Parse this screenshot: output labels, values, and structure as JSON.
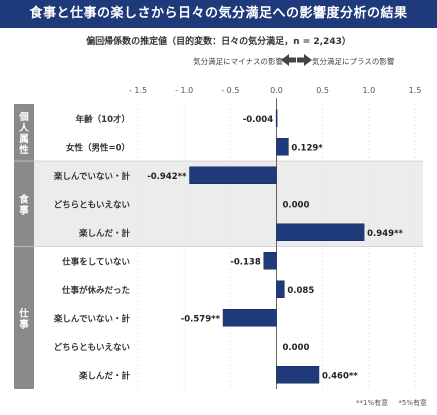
{
  "colors": {
    "bar_fill": "#1f3a7a",
    "bar_stroke": "#16295a",
    "group_label_bg": "#8a8a8a",
    "band_shaded": "#ececec",
    "band_plain": "#ffffff",
    "zero_line": "#666666",
    "grid": "#dddddd",
    "title_bg": "#1f3a7a"
  },
  "header": {
    "title": "食事と仕事の楽しさから日々の気分満足への影響度分析の結果",
    "subtitle": "偏回帰係数の推定値（目的変数：日々の気分満足，n = 2,243）",
    "negative_effect": "気分満足にマイナスの影響",
    "positive_effect": "気分満足にプラスの影響",
    "arrow_left_icon": "arrow-left-icon",
    "arrow_right_icon": "arrow-right-icon"
  },
  "footer": {
    "note_1pct": "**1%有意",
    "note_5pct": "*5%有意"
  },
  "chart_data": {
    "type": "bar",
    "orientation": "horizontal",
    "xlim": [
      -1.5,
      1.5
    ],
    "xticks": [
      -1.5,
      -1.0,
      -0.5,
      0.0,
      0.5,
      1.0,
      1.5
    ],
    "xtick_labels": [
      "- 1.5",
      "- 1.0",
      "- 0.5",
      "0.0",
      "0.5",
      "1.0",
      "1.5"
    ],
    "groups": [
      {
        "label": "個人属性",
        "shaded": false,
        "rows": [
          {
            "category": "年齢（10才）",
            "value": -0.004,
            "label": "-0.004"
          },
          {
            "category": "女性（男性=0）",
            "value": 0.129,
            "label": "0.129*"
          }
        ]
      },
      {
        "label": "食事",
        "shaded": true,
        "rows": [
          {
            "category": "楽しんでいない・計",
            "value": -0.942,
            "label": "-0.942**"
          },
          {
            "category": "どちらともいえない",
            "value": 0.0,
            "label": "0.000"
          },
          {
            "category": "楽しんだ・計",
            "value": 0.949,
            "label": "0.949**"
          }
        ]
      },
      {
        "label": "仕事",
        "shaded": false,
        "rows": [
          {
            "category": "仕事をしていない",
            "value": -0.138,
            "label": "-0.138"
          },
          {
            "category": "仕事が休みだった",
            "value": 0.085,
            "label": "0.085"
          },
          {
            "category": "楽しんでいない・計",
            "value": -0.579,
            "label": "-0.579**"
          },
          {
            "category": "どちらともいえない",
            "value": 0.0,
            "label": "0.000"
          },
          {
            "category": "楽しんだ・計",
            "value": 0.46,
            "label": "0.460**"
          }
        ]
      }
    ]
  }
}
